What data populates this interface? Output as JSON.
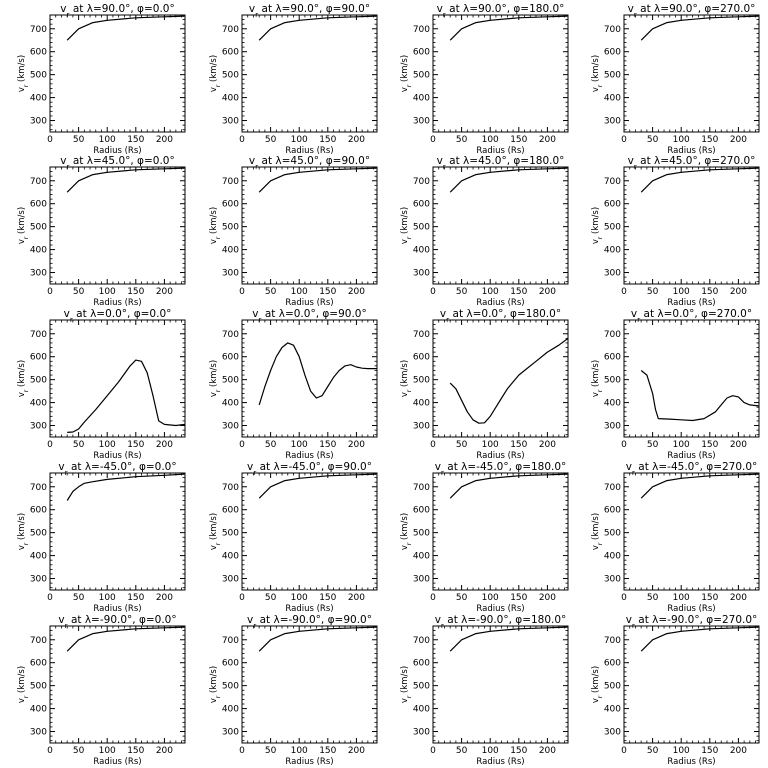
{
  "chart_data": [
    {
      "type": "line",
      "title": "v_r at λ=90.0°, φ=0.0°",
      "xlabel": "Radius (Rs)",
      "ylabel": "v_r (km/s)",
      "xlim": [
        0,
        236
      ],
      "ylim": [
        250,
        760
      ],
      "xticks": [
        0,
        50,
        100,
        150,
        200
      ],
      "yticks": [
        300,
        400,
        500,
        600,
        700
      ],
      "x": [
        30,
        50,
        75,
        100,
        150,
        200,
        235
      ],
      "y": [
        650,
        700,
        727,
        737,
        748,
        752,
        755
      ]
    },
    {
      "type": "line",
      "title": "v_r at λ=90.0°, φ=90.0°",
      "xlabel": "Radius (Rs)",
      "ylabel": "v_r (km/s)",
      "xlim": [
        0,
        236
      ],
      "ylim": [
        250,
        760
      ],
      "xticks": [
        0,
        50,
        100,
        150,
        200
      ],
      "yticks": [
        300,
        400,
        500,
        600,
        700
      ],
      "x": [
        30,
        50,
        75,
        100,
        150,
        200,
        235
      ],
      "y": [
        650,
        700,
        727,
        737,
        748,
        752,
        755
      ]
    },
    {
      "type": "line",
      "title": "v_r at λ=90.0°, φ=180.0°",
      "xlabel": "Radius (Rs)",
      "ylabel": "v_r (km/s)",
      "xlim": [
        0,
        236
      ],
      "ylim": [
        250,
        760
      ],
      "xticks": [
        0,
        50,
        100,
        150,
        200
      ],
      "yticks": [
        300,
        400,
        500,
        600,
        700
      ],
      "x": [
        30,
        50,
        75,
        100,
        150,
        200,
        235
      ],
      "y": [
        650,
        700,
        727,
        737,
        748,
        752,
        755
      ]
    },
    {
      "type": "line",
      "title": "v_r at λ=90.0°, φ=270.0°",
      "xlabel": "Radius (Rs)",
      "ylabel": "v_r (km/s)",
      "xlim": [
        0,
        236
      ],
      "ylim": [
        250,
        760
      ],
      "xticks": [
        0,
        50,
        100,
        150,
        200
      ],
      "yticks": [
        300,
        400,
        500,
        600,
        700
      ],
      "x": [
        30,
        50,
        75,
        100,
        150,
        200,
        235
      ],
      "y": [
        650,
        700,
        727,
        737,
        748,
        752,
        755
      ]
    },
    {
      "type": "line",
      "title": "v_r at λ=45.0°, φ=0.0°",
      "xlabel": "Radius (Rs)",
      "ylabel": "v_r (km/s)",
      "xlim": [
        0,
        236
      ],
      "ylim": [
        250,
        760
      ],
      "xticks": [
        0,
        50,
        100,
        150,
        200
      ],
      "yticks": [
        300,
        400,
        500,
        600,
        700
      ],
      "x": [
        30,
        50,
        75,
        100,
        150,
        200,
        235
      ],
      "y": [
        650,
        700,
        727,
        737,
        748,
        752,
        755
      ]
    },
    {
      "type": "line",
      "title": "v_r at λ=45.0°, φ=90.0°",
      "xlabel": "Radius (Rs)",
      "ylabel": "v_r (km/s)",
      "xlim": [
        0,
        236
      ],
      "ylim": [
        250,
        760
      ],
      "xticks": [
        0,
        50,
        100,
        150,
        200
      ],
      "yticks": [
        300,
        400,
        500,
        600,
        700
      ],
      "x": [
        30,
        50,
        75,
        100,
        150,
        200,
        235
      ],
      "y": [
        650,
        700,
        727,
        737,
        748,
        752,
        755
      ]
    },
    {
      "type": "line",
      "title": "v_r at λ=45.0°, φ=180.0°",
      "xlabel": "Radius (Rs)",
      "ylabel": "v_r (km/s)",
      "xlim": [
        0,
        236
      ],
      "ylim": [
        250,
        760
      ],
      "xticks": [
        0,
        50,
        100,
        150,
        200
      ],
      "yticks": [
        300,
        400,
        500,
        600,
        700
      ],
      "x": [
        30,
        50,
        75,
        100,
        150,
        200,
        235
      ],
      "y": [
        650,
        700,
        727,
        737,
        748,
        752,
        755
      ]
    },
    {
      "type": "line",
      "title": "v_r at λ=45.0°, φ=270.0°",
      "xlabel": "Radius (Rs)",
      "ylabel": "v_r (km/s)",
      "xlim": [
        0,
        236
      ],
      "ylim": [
        250,
        760
      ],
      "xticks": [
        0,
        50,
        100,
        150,
        200
      ],
      "yticks": [
        300,
        400,
        500,
        600,
        700
      ],
      "x": [
        30,
        50,
        75,
        100,
        150,
        200,
        235
      ],
      "y": [
        650,
        700,
        727,
        737,
        748,
        752,
        755
      ]
    },
    {
      "type": "line",
      "title": "v_r at λ=0.0°, φ=0.0°",
      "xlabel": "Radius (Rs)",
      "ylabel": "v_r (km/s)",
      "xlim": [
        0,
        236
      ],
      "ylim": [
        250,
        760
      ],
      "xticks": [
        0,
        50,
        100,
        150,
        200
      ],
      "yticks": [
        300,
        400,
        500,
        600,
        700
      ],
      "x": [
        30,
        40,
        50,
        60,
        80,
        100,
        120,
        140,
        150,
        160,
        170,
        180,
        190,
        200,
        220,
        236
      ],
      "y": [
        270,
        272,
        285,
        315,
        370,
        430,
        490,
        560,
        585,
        580,
        530,
        430,
        320,
        305,
        300,
        305
      ]
    },
    {
      "type": "line",
      "title": "v_r at λ=0.0°, φ=90.0°",
      "xlabel": "Radius (Rs)",
      "ylabel": "v_r (km/s)",
      "xlim": [
        0,
        236
      ],
      "ylim": [
        250,
        760
      ],
      "xticks": [
        0,
        50,
        100,
        150,
        200
      ],
      "yticks": [
        300,
        400,
        500,
        600,
        700
      ],
      "x": [
        30,
        40,
        50,
        60,
        70,
        80,
        90,
        100,
        110,
        120,
        130,
        140,
        150,
        160,
        170,
        180,
        190,
        200,
        210,
        220,
        236
      ],
      "y": [
        390,
        470,
        540,
        600,
        640,
        660,
        650,
        600,
        520,
        450,
        420,
        430,
        470,
        510,
        540,
        560,
        565,
        555,
        550,
        548,
        548
      ]
    },
    {
      "type": "line",
      "title": "v_r at λ=0.0°, φ=180.0°",
      "xlabel": "Radius (Rs)",
      "ylabel": "v_r (km/s)",
      "xlim": [
        0,
        236
      ],
      "ylim": [
        250,
        760
      ],
      "xticks": [
        0,
        50,
        100,
        150,
        200
      ],
      "yticks": [
        300,
        400,
        500,
        600,
        700
      ],
      "x": [
        30,
        40,
        50,
        60,
        70,
        80,
        90,
        100,
        110,
        120,
        130,
        140,
        150,
        160,
        180,
        200,
        220,
        236
      ],
      "y": [
        485,
        460,
        410,
        360,
        325,
        310,
        312,
        340,
        380,
        420,
        460,
        490,
        520,
        540,
        580,
        620,
        650,
        680
      ]
    },
    {
      "type": "line",
      "title": "v_r at λ=0.0°, φ=270.0°",
      "xlabel": "Radius (Rs)",
      "ylabel": "v_r (km/s)",
      "xlim": [
        0,
        236
      ],
      "ylim": [
        250,
        760
      ],
      "xticks": [
        0,
        50,
        100,
        150,
        200
      ],
      "yticks": [
        300,
        400,
        500,
        600,
        700
      ],
      "x": [
        30,
        40,
        50,
        55,
        60,
        80,
        100,
        120,
        140,
        160,
        170,
        180,
        190,
        200,
        210,
        220,
        236
      ],
      "y": [
        540,
        520,
        440,
        370,
        330,
        328,
        325,
        322,
        330,
        360,
        390,
        420,
        430,
        425,
        400,
        390,
        385
      ]
    },
    {
      "type": "line",
      "title": "v_r at λ=-45.0°, φ=0.0°",
      "xlabel": "Radius (Rs)",
      "ylabel": "v_r (km/s)",
      "xlim": [
        0,
        236
      ],
      "ylim": [
        250,
        760
      ],
      "xticks": [
        0,
        50,
        100,
        150,
        200
      ],
      "yticks": [
        300,
        400,
        500,
        600,
        700
      ],
      "x": [
        30,
        40,
        50,
        60,
        75,
        100,
        150,
        200,
        235
      ],
      "y": [
        640,
        680,
        700,
        715,
        722,
        732,
        744,
        750,
        755
      ]
    },
    {
      "type": "line",
      "title": "v_r at λ=-45.0°, φ=90.0°",
      "xlabel": "Radius (Rs)",
      "ylabel": "v_r (km/s)",
      "xlim": [
        0,
        236
      ],
      "ylim": [
        250,
        760
      ],
      "xticks": [
        0,
        50,
        100,
        150,
        200
      ],
      "yticks": [
        300,
        400,
        500,
        600,
        700
      ],
      "x": [
        30,
        50,
        75,
        100,
        150,
        200,
        235
      ],
      "y": [
        650,
        700,
        727,
        737,
        748,
        752,
        755
      ]
    },
    {
      "type": "line",
      "title": "v_r at λ=-45.0°, φ=180.0°",
      "xlabel": "Radius (Rs)",
      "ylabel": "v_r (km/s)",
      "xlim": [
        0,
        236
      ],
      "ylim": [
        250,
        760
      ],
      "xticks": [
        0,
        50,
        100,
        150,
        200
      ],
      "yticks": [
        300,
        400,
        500,
        600,
        700
      ],
      "x": [
        30,
        50,
        75,
        100,
        150,
        200,
        235
      ],
      "y": [
        650,
        700,
        727,
        737,
        748,
        752,
        755
      ]
    },
    {
      "type": "line",
      "title": "v_r at λ=-45.0°, φ=270.0°",
      "xlabel": "Radius (Rs)",
      "ylabel": "v_r (km/s)",
      "xlim": [
        0,
        236
      ],
      "ylim": [
        250,
        760
      ],
      "xticks": [
        0,
        50,
        100,
        150,
        200
      ],
      "yticks": [
        300,
        400,
        500,
        600,
        700
      ],
      "x": [
        30,
        50,
        75,
        100,
        150,
        200,
        235
      ],
      "y": [
        650,
        700,
        727,
        737,
        748,
        752,
        755
      ]
    },
    {
      "type": "line",
      "title": "v_r at λ=-90.0°, φ=0.0°",
      "xlabel": "Radius (Rs)",
      "ylabel": "v_r (km/s)",
      "xlim": [
        0,
        236
      ],
      "ylim": [
        250,
        760
      ],
      "xticks": [
        0,
        50,
        100,
        150,
        200
      ],
      "yticks": [
        300,
        400,
        500,
        600,
        700
      ],
      "x": [
        30,
        50,
        75,
        100,
        150,
        200,
        235
      ],
      "y": [
        650,
        700,
        727,
        737,
        748,
        752,
        755
      ]
    },
    {
      "type": "line",
      "title": "v_r at λ=-90.0°, φ=90.0°",
      "xlabel": "Radius (Rs)",
      "ylabel": "v_r (km/s)",
      "xlim": [
        0,
        236
      ],
      "ylim": [
        250,
        760
      ],
      "xticks": [
        0,
        50,
        100,
        150,
        200
      ],
      "yticks": [
        300,
        400,
        500,
        600,
        700
      ],
      "x": [
        30,
        50,
        75,
        100,
        150,
        200,
        235
      ],
      "y": [
        650,
        700,
        727,
        737,
        748,
        752,
        755
      ]
    },
    {
      "type": "line",
      "title": "v_r at λ=-90.0°, φ=180.0°",
      "xlabel": "Radius (Rs)",
      "ylabel": "v_r (km/s)",
      "xlim": [
        0,
        236
      ],
      "ylim": [
        250,
        760
      ],
      "xticks": [
        0,
        50,
        100,
        150,
        200
      ],
      "yticks": [
        300,
        400,
        500,
        600,
        700
      ],
      "x": [
        30,
        50,
        75,
        100,
        150,
        200,
        235
      ],
      "y": [
        650,
        700,
        727,
        737,
        748,
        752,
        755
      ]
    },
    {
      "type": "line",
      "title": "v_r at λ=-90.0°, φ=270.0°",
      "xlabel": "Radius (Rs)",
      "ylabel": "v_r (km/s)",
      "xlim": [
        0,
        236
      ],
      "ylim": [
        250,
        760
      ],
      "xticks": [
        0,
        50,
        100,
        150,
        200
      ],
      "yticks": [
        300,
        400,
        500,
        600,
        700
      ],
      "x": [
        30,
        50,
        75,
        100,
        150,
        200,
        235
      ],
      "y": [
        650,
        700,
        727,
        737,
        748,
        752,
        755
      ]
    }
  ]
}
